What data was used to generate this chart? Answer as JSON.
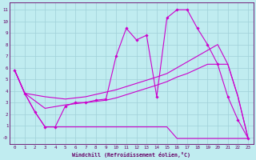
{
  "background_color": "#c0ecf0",
  "line_color": "#cc00cc",
  "grid_color": "#a0d0d8",
  "tick_color": "#660066",
  "xlabel": "Windchill (Refroidissement éolien,°C)",
  "x_ticks": [
    0,
    1,
    2,
    3,
    4,
    5,
    6,
    7,
    8,
    9,
    10,
    11,
    12,
    13,
    14,
    15,
    16,
    17,
    18,
    19,
    20,
    21,
    22,
    23
  ],
  "y_ticks": [
    0,
    1,
    2,
    3,
    4,
    5,
    6,
    7,
    8,
    9,
    10,
    11
  ],
  "y_tick_labels": [
    "-0",
    "1",
    "2",
    "3",
    "4",
    "5",
    "6",
    "7",
    "8",
    "9",
    "10",
    "11"
  ],
  "xlim": [
    -0.5,
    23.5
  ],
  "ylim": [
    -0.6,
    11.6
  ],
  "series": [
    {
      "name": "main_zigzag",
      "x": [
        0,
        1,
        2,
        3,
        4,
        5,
        6,
        7,
        8,
        9,
        10,
        11,
        12,
        13,
        14,
        15,
        16,
        17,
        18,
        19,
        20,
        21,
        22,
        23
      ],
      "y": [
        5.8,
        3.8,
        2.2,
        0.9,
        0.9,
        2.7,
        3.0,
        3.0,
        3.2,
        3.3,
        7.0,
        9.4,
        8.4,
        8.8,
        3.5,
        10.3,
        11.0,
        11.0,
        9.4,
        8.0,
        6.3,
        3.5,
        1.5,
        -0.1
      ],
      "marker": "D",
      "markersize": 1.8,
      "linewidth": 0.8
    },
    {
      "name": "upper_diagonal",
      "x": [
        0,
        1,
        3,
        5,
        6,
        7,
        8,
        9,
        10,
        14,
        15,
        16,
        17,
        19,
        20,
        21,
        22,
        23
      ],
      "y": [
        5.8,
        3.8,
        3.5,
        3.3,
        3.4,
        3.5,
        3.7,
        3.9,
        4.1,
        5.2,
        5.5,
        6.0,
        6.5,
        7.5,
        8.0,
        6.3,
        3.5,
        -0.1
      ],
      "marker": null,
      "markersize": 0,
      "linewidth": 0.8
    },
    {
      "name": "lower_diagonal",
      "x": [
        0,
        1,
        3,
        5,
        6,
        7,
        8,
        9,
        10,
        14,
        15,
        16,
        17,
        19,
        20,
        21,
        22,
        23
      ],
      "y": [
        5.8,
        3.8,
        2.5,
        2.8,
        2.9,
        3.0,
        3.1,
        3.2,
        3.4,
        4.5,
        4.8,
        5.2,
        5.5,
        6.3,
        6.3,
        6.3,
        3.5,
        -0.1
      ],
      "marker": null,
      "markersize": 0,
      "linewidth": 0.8
    },
    {
      "name": "bottom_flat",
      "x": [
        0,
        1,
        2,
        3,
        4,
        5,
        6,
        7,
        8,
        9,
        10,
        11,
        12,
        13,
        14,
        15,
        16,
        17,
        18,
        19,
        20,
        21,
        22,
        23
      ],
      "y": [
        5.8,
        3.8,
        2.2,
        0.9,
        0.9,
        0.9,
        0.9,
        0.9,
        0.9,
        0.9,
        0.9,
        0.9,
        0.9,
        0.9,
        0.9,
        0.9,
        -0.1,
        -0.1,
        -0.1,
        -0.1,
        -0.1,
        -0.1,
        -0.1,
        -0.1
      ],
      "marker": null,
      "markersize": 0,
      "linewidth": 0.8
    }
  ]
}
